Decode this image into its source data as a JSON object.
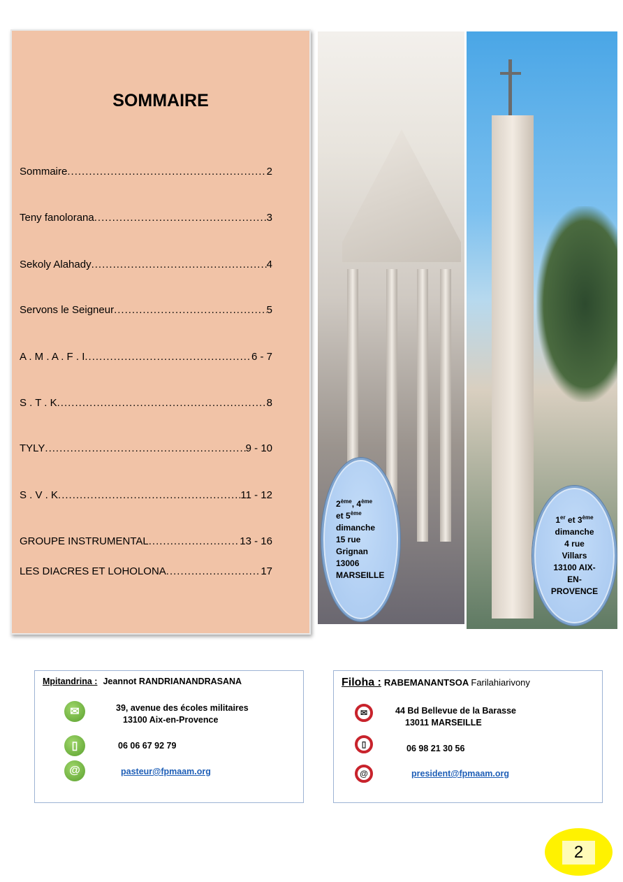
{
  "toc": {
    "title": "SOMMAIRE",
    "entries": [
      {
        "label": "Sommaire",
        "page": "2"
      },
      {
        "label": "Teny fanolorana",
        "page": "3"
      },
      {
        "label": "Sekoly Alahady",
        "page": "4"
      },
      {
        "label": "Servons le Seigneur",
        "page": "5"
      },
      {
        "label": "A . M . A . F . I",
        "page": "6 - 7"
      },
      {
        "label": "S . T . K",
        "page": "8"
      },
      {
        "label": "TYLY",
        "page": "9 - 10"
      },
      {
        "label": "S . V . K",
        "page": "11 - 12"
      },
      {
        "label": "GROUPE INSTRUMENTAL",
        "page": "13 - 16"
      },
      {
        "label": "LES DIACRES ET LOHOLONA",
        "page": "17"
      }
    ]
  },
  "locations": {
    "marseille": {
      "days_a": "2",
      "sup_a": "ème",
      "sep_a": ", ",
      "days_b": "4",
      "sup_b": "ème",
      "days_c": "et 5",
      "sup_c": "ème",
      "line1": "dimanche",
      "line2": "15 rue",
      "line3": "Grignan",
      "line4": "13006",
      "line5": "MARSEILLE"
    },
    "aix": {
      "days_a": "1",
      "sup_a": "er",
      "mid": " et 3",
      "sup_b": "ème",
      "line1": "dimanche",
      "line2": "4 rue",
      "line3": "Villars",
      "line4": "13100 AIX-",
      "line5": "EN-",
      "line6": "PROVENCE"
    }
  },
  "contacts": {
    "pastor": {
      "role": "Mpitandrina :",
      "name": "Jeannot RANDRIANANDRASANA",
      "address1": "39, avenue des écoles militaires",
      "address2": "13100 Aix-en-Provence",
      "phone": "06 06 67 92 79",
      "email": "pasteur@fpmaam.org",
      "icon_color": "#6ab33e"
    },
    "president": {
      "role": "Filoha :",
      "surname": "RABEMANANTSOA",
      "firstname": "Farilahiarivony",
      "address1": "44 Bd Bellevue de la Barasse",
      "address2": "13011 MARSEILLE",
      "phone": "06 98 21 30 56",
      "email": "president@fpmaam.org",
      "icon_color": "#c8232c"
    }
  },
  "page_number": "2"
}
